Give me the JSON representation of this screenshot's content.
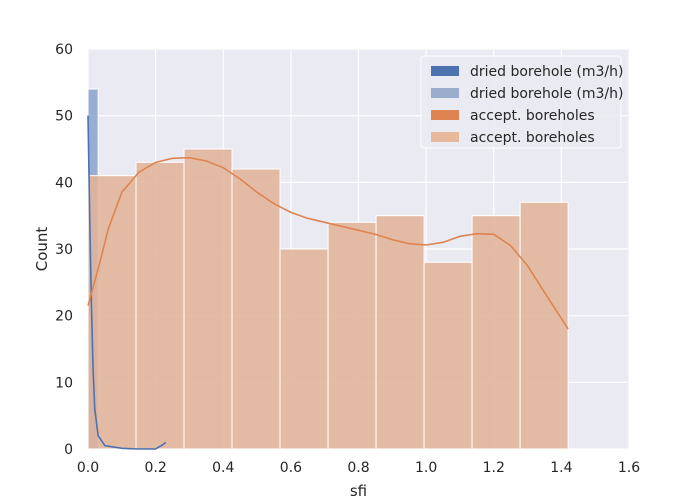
{
  "chart_data": {
    "type": "bar",
    "xlabel": "sfi",
    "ylabel": "Count",
    "xlim": [
      0,
      1.6
    ],
    "ylim": [
      0,
      60
    ],
    "xticks": [
      0.0,
      0.2,
      0.4,
      0.6,
      0.8,
      1.0,
      1.2,
      1.4,
      1.6
    ],
    "yticks": [
      0,
      10,
      20,
      30,
      40,
      50,
      60
    ],
    "xtick_labels": [
      "0.0",
      "0.2",
      "0.4",
      "0.6",
      "0.8",
      "1.0",
      "1.2",
      "1.4",
      "1.6"
    ],
    "ytick_labels": [
      "0",
      "10",
      "20",
      "30",
      "40",
      "50",
      "60"
    ],
    "grid": true,
    "legend_position": "top-right",
    "legend": [
      {
        "label": "dried borehole (m3/h)",
        "kind": "line",
        "color": "#4c72b0"
      },
      {
        "label": "dried borehole (m3/h)",
        "kind": "bar",
        "color": "#9aaccc"
      },
      {
        "label": "accept. boreholes",
        "kind": "line",
        "color": "#dd8452"
      },
      {
        "label": "accept. boreholes",
        "kind": "bar",
        "color": "#e8b89d"
      }
    ],
    "series": [
      {
        "color": "#4c72b0",
        "bins": [
          [
            0.0,
            0.03,
            54
          ]
        ],
        "kde": [
          [
            0.0,
            50
          ],
          [
            0.005,
            35
          ],
          [
            0.01,
            22
          ],
          [
            0.015,
            12
          ],
          [
            0.02,
            6
          ],
          [
            0.03,
            2
          ],
          [
            0.05,
            0.5
          ],
          [
            0.1,
            0.1
          ],
          [
            0.15,
            0.0
          ],
          [
            0.2,
            0.0
          ],
          [
            0.22,
            0.6
          ],
          [
            0.23,
            1.0
          ]
        ]
      },
      {
        "color": "#dd8452",
        "bins": [
          [
            0.0,
            0.142,
            41
          ],
          [
            0.142,
            0.284,
            43
          ],
          [
            0.284,
            0.426,
            45
          ],
          [
            0.426,
            0.568,
            42
          ],
          [
            0.568,
            0.71,
            30
          ],
          [
            0.71,
            0.852,
            34
          ],
          [
            0.852,
            0.994,
            35
          ],
          [
            0.994,
            1.136,
            28
          ],
          [
            1.136,
            1.278,
            35
          ],
          [
            1.278,
            1.42,
            37
          ]
        ],
        "kde": [
          [
            0.0,
            21.5
          ],
          [
            0.03,
            27
          ],
          [
            0.06,
            33
          ],
          [
            0.1,
            38.5
          ],
          [
            0.15,
            41.5
          ],
          [
            0.2,
            43
          ],
          [
            0.25,
            43.6
          ],
          [
            0.3,
            43.7
          ],
          [
            0.35,
            43.2
          ],
          [
            0.4,
            42.2
          ],
          [
            0.45,
            40.5
          ],
          [
            0.5,
            38.5
          ],
          [
            0.55,
            36.8
          ],
          [
            0.6,
            35.5
          ],
          [
            0.65,
            34.6
          ],
          [
            0.7,
            34
          ],
          [
            0.75,
            33.4
          ],
          [
            0.8,
            32.8
          ],
          [
            0.85,
            32.2
          ],
          [
            0.9,
            31.4
          ],
          [
            0.95,
            30.8
          ],
          [
            1.0,
            30.6
          ],
          [
            1.05,
            31
          ],
          [
            1.1,
            31.9
          ],
          [
            1.15,
            32.3
          ],
          [
            1.2,
            32.2
          ],
          [
            1.25,
            30.5
          ],
          [
            1.3,
            27.5
          ],
          [
            1.35,
            23.5
          ],
          [
            1.42,
            18
          ]
        ]
      }
    ]
  }
}
